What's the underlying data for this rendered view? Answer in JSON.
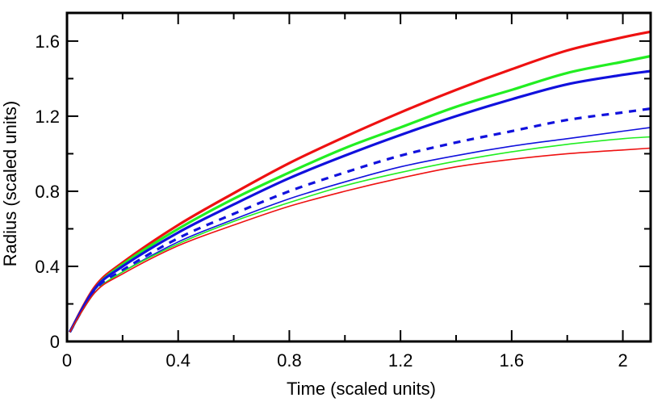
{
  "chart_data": {
    "type": "line",
    "title": "",
    "xlabel": "Time (scaled units)",
    "ylabel": "Radius (scaled units)",
    "xlim": [
      0,
      2.1
    ],
    "ylim": [
      0,
      1.75
    ],
    "xticks": [
      0,
      0.4,
      0.8,
      1.2,
      1.6,
      2
    ],
    "xtick_labels": [
      "0",
      "0.4",
      "0.8",
      "1.2",
      "1.6",
      "2"
    ],
    "yticks": [
      0,
      0.4,
      0.8,
      1.2,
      1.6
    ],
    "ytick_labels": [
      "0",
      "0.4",
      "0.8",
      "1.2",
      "1.6"
    ],
    "grid": false,
    "legend": "none",
    "series": [
      {
        "color": "#ee1111",
        "style": "solid",
        "width": "thick",
        "x": [
          0.01,
          0.1,
          0.2,
          0.4,
          0.6,
          0.8,
          1.0,
          1.2,
          1.4,
          1.6,
          1.8,
          2.0,
          2.1
        ],
        "y": [
          0.05,
          0.29,
          0.42,
          0.62,
          0.79,
          0.95,
          1.09,
          1.22,
          1.34,
          1.45,
          1.55,
          1.62,
          1.65
        ]
      },
      {
        "color": "#22ee22",
        "style": "solid",
        "width": "thick",
        "x": [
          0.01,
          0.1,
          0.2,
          0.4,
          0.6,
          0.8,
          1.0,
          1.2,
          1.4,
          1.6,
          1.8,
          2.0,
          2.1
        ],
        "y": [
          0.05,
          0.28,
          0.41,
          0.6,
          0.76,
          0.9,
          1.03,
          1.14,
          1.25,
          1.34,
          1.43,
          1.49,
          1.52
        ]
      },
      {
        "color": "#1111dd",
        "style": "solid",
        "width": "thick",
        "x": [
          0.01,
          0.1,
          0.2,
          0.4,
          0.6,
          0.8,
          1.0,
          1.2,
          1.4,
          1.6,
          1.8,
          2.0,
          2.1
        ],
        "y": [
          0.05,
          0.28,
          0.4,
          0.58,
          0.73,
          0.87,
          0.99,
          1.1,
          1.2,
          1.29,
          1.37,
          1.42,
          1.44
        ]
      },
      {
        "color": "#1111dd",
        "style": "dashed",
        "width": "thick",
        "x": [
          0.01,
          0.1,
          0.2,
          0.4,
          0.6,
          0.8,
          1.0,
          1.2,
          1.4,
          1.6,
          1.8,
          2.0,
          2.1
        ],
        "y": [
          0.05,
          0.27,
          0.38,
          0.55,
          0.68,
          0.8,
          0.9,
          0.99,
          1.06,
          1.12,
          1.18,
          1.22,
          1.24
        ]
      },
      {
        "color": "#1111dd",
        "style": "solid",
        "width": "thin",
        "x": [
          0.01,
          0.1,
          0.2,
          0.4,
          0.6,
          0.8,
          1.0,
          1.2,
          1.4,
          1.6,
          1.8,
          2.0,
          2.1
        ],
        "y": [
          0.05,
          0.26,
          0.37,
          0.53,
          0.65,
          0.76,
          0.85,
          0.93,
          0.99,
          1.04,
          1.08,
          1.12,
          1.14
        ]
      },
      {
        "color": "#22ee22",
        "style": "solid",
        "width": "thin",
        "x": [
          0.01,
          0.1,
          0.2,
          0.4,
          0.6,
          0.8,
          1.0,
          1.2,
          1.4,
          1.6,
          1.8,
          2.0,
          2.1
        ],
        "y": [
          0.05,
          0.26,
          0.37,
          0.52,
          0.64,
          0.74,
          0.83,
          0.9,
          0.96,
          1.01,
          1.05,
          1.08,
          1.09
        ]
      },
      {
        "color": "#ee1111",
        "style": "solid",
        "width": "thin",
        "x": [
          0.01,
          0.1,
          0.2,
          0.4,
          0.6,
          0.8,
          1.0,
          1.2,
          1.4,
          1.6,
          1.8,
          2.0,
          2.1
        ],
        "y": [
          0.05,
          0.26,
          0.36,
          0.51,
          0.62,
          0.72,
          0.8,
          0.87,
          0.93,
          0.97,
          1.0,
          1.02,
          1.03
        ]
      }
    ]
  }
}
